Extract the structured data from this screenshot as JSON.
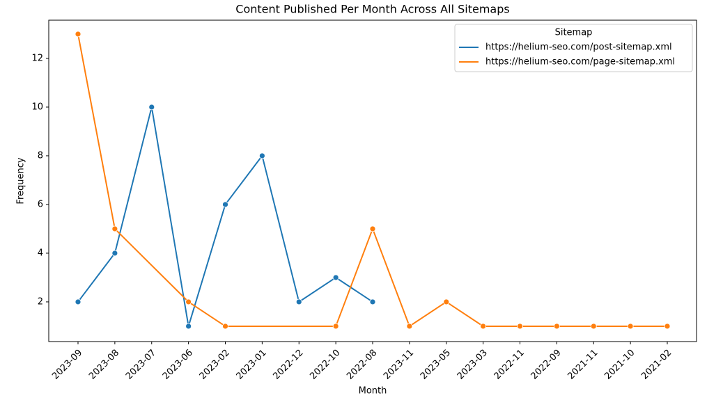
{
  "chart_data": {
    "type": "line",
    "title": "Content Published Per Month Across All Sitemaps",
    "x_label": "Month",
    "y_label": "Frequency",
    "legend_title": "Sitemap",
    "legend": "upper right",
    "connect_gaps": true,
    "categories": [
      "2023-09",
      "2023-08",
      "2023-07",
      "2023-06",
      "2023-02",
      "2023-01",
      "2022-12",
      "2022-10",
      "2022-08",
      "2023-11",
      "2023-05",
      "2023-03",
      "2022-11",
      "2022-09",
      "2021-11",
      "2021-10",
      "2021-02"
    ],
    "series": [
      {
        "name": "https://helium-seo.com/post-sitemap.xml",
        "color": "#1f77b4",
        "values": [
          2,
          4,
          10,
          1,
          6,
          8,
          2,
          3,
          2,
          null,
          null,
          null,
          null,
          null,
          null,
          null,
          null
        ]
      },
      {
        "name": "https://helium-seo.com/page-sitemap.xml",
        "color": "#ff7f0e",
        "values": [
          13,
          5,
          null,
          2,
          1,
          null,
          null,
          1,
          5,
          1,
          2,
          1,
          1,
          1,
          1,
          1,
          1
        ]
      }
    ],
    "ylim": [
      0.37,
      13.57
    ],
    "yticks": [
      2,
      4,
      6,
      8,
      10,
      12
    ]
  }
}
